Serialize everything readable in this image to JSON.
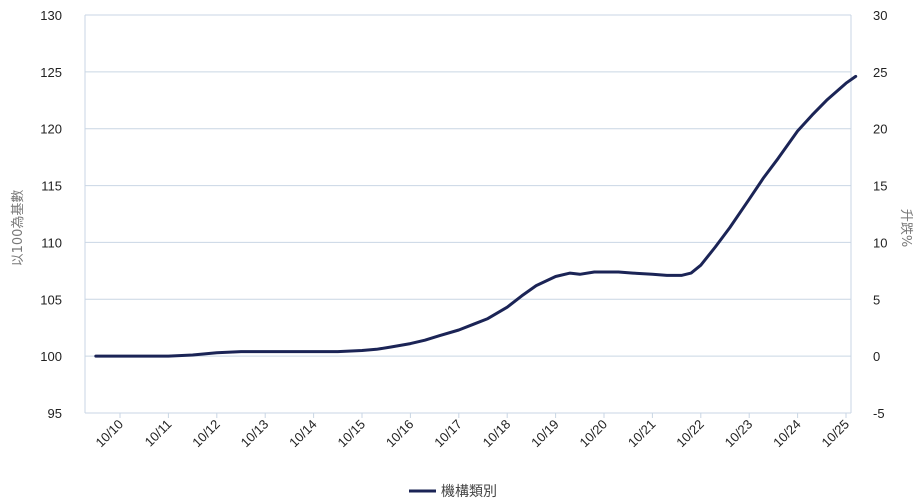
{
  "chart_data": {
    "type": "line",
    "left_axis_label": "以100為基數",
    "right_axis_label": "升跌%",
    "x_ticks": [
      "10/10",
      "10/11",
      "10/12",
      "10/13",
      "10/14",
      "10/15",
      "10/16",
      "10/17",
      "10/18",
      "10/19",
      "10/20",
      "10/21",
      "10/22",
      "10/23",
      "10/24",
      "10/25"
    ],
    "y_left": {
      "min": 95,
      "max": 130,
      "ticks": [
        95,
        100,
        105,
        110,
        115,
        120,
        125,
        130
      ]
    },
    "y_right": {
      "min": -5,
      "max": 30,
      "ticks": [
        -5,
        0,
        5,
        10,
        15,
        20,
        25,
        30
      ]
    },
    "grid": true,
    "legend_position": "bottom",
    "series": [
      {
        "name": "機構類別",
        "color": "#1b2456",
        "x": [
          9.5,
          10.0,
          10.5,
          11.0,
          11.5,
          12.0,
          12.5,
          13.0,
          13.5,
          14.0,
          14.5,
          15.0,
          15.3,
          15.6,
          16.0,
          16.3,
          16.6,
          17.0,
          17.3,
          17.6,
          18.0,
          18.3,
          18.6,
          19.0,
          19.3,
          19.5,
          19.8,
          20.0,
          20.3,
          20.6,
          21.0,
          21.3,
          21.6,
          21.8,
          22.0,
          22.3,
          22.6,
          23.0,
          23.3,
          23.6,
          24.0,
          24.3,
          24.6,
          25.0,
          25.2
        ],
        "values": [
          100.0,
          100.0,
          100.0,
          100.0,
          100.1,
          100.3,
          100.4,
          100.4,
          100.4,
          100.4,
          100.4,
          100.5,
          100.6,
          100.8,
          101.1,
          101.4,
          101.8,
          102.3,
          102.8,
          103.3,
          104.3,
          105.3,
          106.2,
          107.0,
          107.3,
          107.2,
          107.4,
          107.4,
          107.4,
          107.3,
          107.2,
          107.1,
          107.1,
          107.3,
          108.0,
          109.6,
          111.3,
          113.8,
          115.7,
          117.4,
          119.8,
          121.2,
          122.5,
          124.0,
          124.6
        ]
      }
    ]
  }
}
